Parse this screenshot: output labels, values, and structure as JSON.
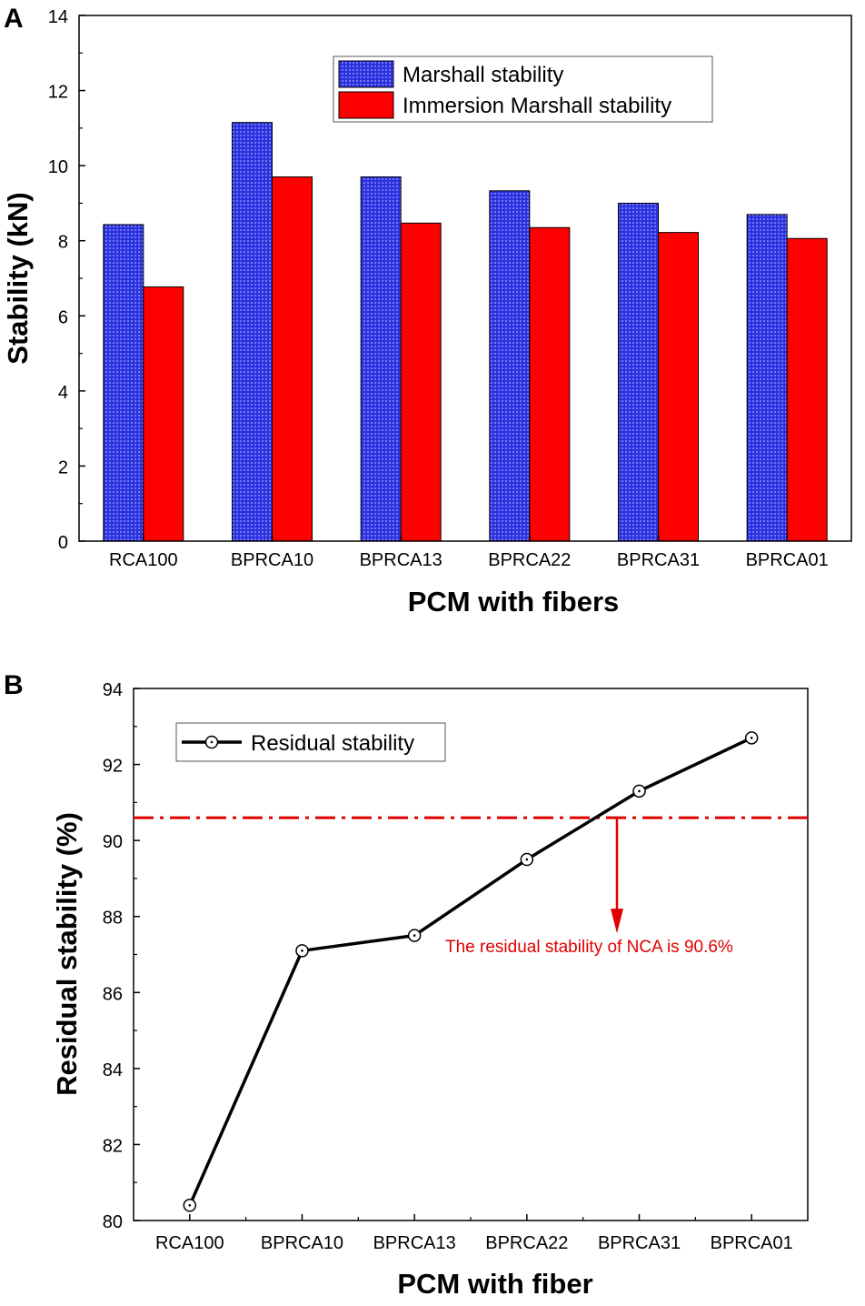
{
  "colors": {
    "marshall": "#2b31e0",
    "immersion": "#ff0000",
    "line": "#000000",
    "reference": "#e00000"
  },
  "chart_data": [
    {
      "panel": "A",
      "type": "bar",
      "title": "",
      "xlabel": "PCM with fibers",
      "ylabel": "Stability (kN)",
      "ylim": [
        0,
        14
      ],
      "yticks": [
        0,
        2,
        4,
        6,
        8,
        10,
        12,
        14
      ],
      "categories": [
        "RCA100",
        "BPRCA10",
        "BPRCA13",
        "BPRCA22",
        "BPRCA31",
        "BPRCA01"
      ],
      "series": [
        {
          "name": "Marshall stability",
          "values": [
            8.43,
            11.15,
            9.7,
            9.33,
            9.0,
            8.7
          ]
        },
        {
          "name": "Immersion Marshall stability",
          "values": [
            6.77,
            9.7,
            8.47,
            8.35,
            8.22,
            8.06
          ]
        }
      ],
      "legend_position": "top-right"
    },
    {
      "panel": "B",
      "type": "line",
      "title": "",
      "xlabel": "PCM with fiber",
      "ylabel": "Residual stability (%)",
      "ylim": [
        80,
        94
      ],
      "yticks": [
        80,
        82,
        84,
        86,
        88,
        90,
        92,
        94
      ],
      "categories": [
        "RCA100",
        "BPRCA10",
        "BPRCA13",
        "BPRCA22",
        "BPRCA31",
        "BPRCA01"
      ],
      "series": [
        {
          "name": "Residual stability",
          "values": [
            80.4,
            87.1,
            87.5,
            89.5,
            91.3,
            92.7
          ]
        }
      ],
      "reference_line": {
        "value": 90.6,
        "style": "dash-dot"
      },
      "annotation": "The residual stability of NCA is 90.6%",
      "legend_position": "top-left"
    }
  ]
}
